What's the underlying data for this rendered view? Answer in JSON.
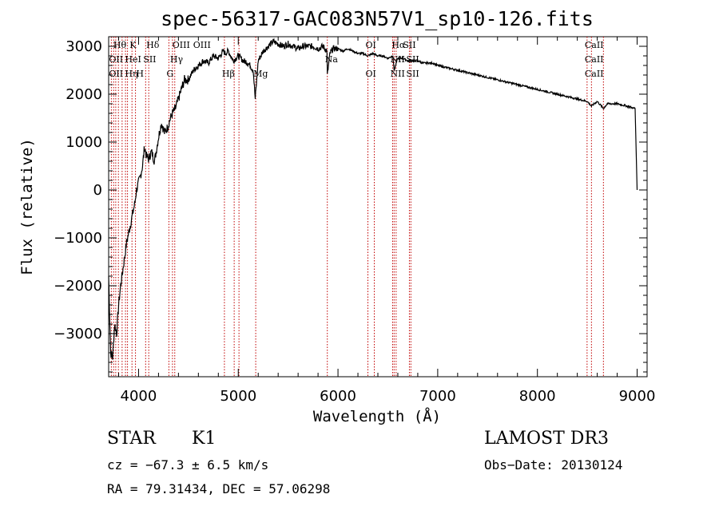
{
  "chart_data": {
    "type": "line",
    "title": "spec-56317-GAC083N57V1_sp10-126.fits",
    "xlabel": "Wavelength (Å)",
    "ylabel": "Flux (relative)",
    "xlim": [
      3700,
      9100
    ],
    "ylim": [
      -3900,
      3200
    ],
    "xticks": [
      4000,
      5000,
      6000,
      7000,
      8000,
      9000
    ],
    "yticks": [
      -3000,
      -2000,
      -1000,
      0,
      1000,
      2000,
      3000
    ],
    "ytick_labels": [
      "−3000",
      "−2000",
      "−1000",
      "0",
      "1000",
      "2000",
      "3000"
    ],
    "series": [
      {
        "name": "spectrum",
        "x": [
          3700,
          3720,
          3740,
          3760,
          3780,
          3800,
          3820,
          3840,
          3860,
          3880,
          3900,
          3920,
          3940,
          3960,
          3980,
          4000,
          4020,
          4040,
          4060,
          4080,
          4100,
          4130,
          4160,
          4200,
          4230,
          4260,
          4290,
          4320,
          4340,
          4370,
          4400,
          4430,
          4460,
          4500,
          4550,
          4600,
          4650,
          4700,
          4750,
          4800,
          4850,
          4870,
          4900,
          4950,
          5000,
          5050,
          5100,
          5150,
          5170,
          5200,
          5250,
          5300,
          5350,
          5400,
          5450,
          5500,
          5550,
          5600,
          5650,
          5700,
          5750,
          5800,
          5850,
          5890,
          5893,
          5920,
          5950,
          6000,
          6050,
          6100,
          6150,
          6200,
          6250,
          6300,
          6350,
          6400,
          6450,
          6500,
          6550,
          6563,
          6600,
          6650,
          6700,
          6750,
          6800,
          6850,
          6900,
          6950,
          7000,
          7100,
          7200,
          7300,
          7400,
          7500,
          7600,
          7700,
          7800,
          7900,
          8000,
          8100,
          8200,
          8300,
          8400,
          8498,
          8542,
          8600,
          8662,
          8700,
          8800,
          8900,
          8980,
          9000
        ],
        "y": [
          -1800,
          -3400,
          -3500,
          -2800,
          -3000,
          -2400,
          -2000,
          -1700,
          -1400,
          -1100,
          -900,
          -700,
          -500,
          -300,
          0,
          150,
          300,
          500,
          900,
          700,
          650,
          800,
          600,
          1100,
          1400,
          1200,
          1300,
          1500,
          1600,
          1700,
          1900,
          2100,
          2300,
          2300,
          2500,
          2600,
          2700,
          2650,
          2800,
          2750,
          2900,
          2850,
          2900,
          2700,
          2800,
          2700,
          2650,
          2500,
          1900,
          2700,
          2900,
          3000,
          3100,
          3050,
          3000,
          3050,
          3000,
          2950,
          3000,
          3000,
          3000,
          2950,
          3000,
          2900,
          2400,
          2850,
          2950,
          2950,
          2900,
          2950,
          2900,
          2850,
          2850,
          2800,
          2850,
          2800,
          2800,
          2750,
          2800,
          2500,
          2750,
          2750,
          2700,
          2700,
          2700,
          2650,
          2650,
          2650,
          2600,
          2550,
          2500,
          2450,
          2400,
          2350,
          2300,
          2250,
          2200,
          2150,
          2100,
          2050,
          2000,
          1950,
          1900,
          1850,
          1750,
          1850,
          1700,
          1800,
          1800,
          1750,
          1700,
          0
        ]
      }
    ],
    "lines": [
      {
        "x": 3727,
        "label": "OII"
      },
      {
        "x": 3750,
        "label": "OII"
      },
      {
        "x": 3771,
        "label": "Hθ"
      },
      {
        "x": 3798,
        "label": "Hη"
      },
      {
        "x": 3835,
        "label": "Hη"
      },
      {
        "x": 3869,
        "label": "HeI"
      },
      {
        "x": 3889,
        "label": "Hζ"
      },
      {
        "x": 3934,
        "label": "K"
      },
      {
        "x": 3969,
        "label": "H"
      },
      {
        "x": 4071,
        "label": "SII"
      },
      {
        "x": 4102,
        "label": "Hδ"
      },
      {
        "x": 4304,
        "label": "G"
      },
      {
        "x": 4340,
        "label": "Hγ"
      },
      {
        "x": 4363,
        "label": "OIII"
      },
      {
        "x": 4861,
        "label": "Hβ"
      },
      {
        "x": 4959,
        "label": "OIII"
      },
      {
        "x": 5007,
        "label": "OIII"
      },
      {
        "x": 5175,
        "label": "Mg"
      },
      {
        "x": 5893,
        "label": "Na"
      },
      {
        "x": 6300,
        "label": "OI"
      },
      {
        "x": 6364,
        "label": "OI"
      },
      {
        "x": 6548,
        "label": "NII"
      },
      {
        "x": 6563,
        "label": "Hα"
      },
      {
        "x": 6583,
        "label": "NII"
      },
      {
        "x": 6716,
        "label": "SII"
      },
      {
        "x": 6731,
        "label": "SII"
      },
      {
        "x": 8498,
        "label": "CaII"
      },
      {
        "x": 8542,
        "label": "CaII"
      },
      {
        "x": 8662,
        "label": "CaII"
      }
    ],
    "line_label_rows": [
      [
        "Hθ",
        "K",
        "Hδ",
        "OIII",
        "OIII",
        "OI",
        "Hα",
        "SII",
        "CaII"
      ],
      [
        "OII",
        "HeI",
        "SII",
        "Hγ",
        "Na",
        "NII",
        "SII",
        "CaII"
      ],
      [
        "OII",
        "Hη",
        "H",
        "G",
        "Hβ",
        "Mg",
        "OI",
        "NII",
        "SII",
        "CaII"
      ]
    ],
    "line_color": "#c00000",
    "spectrum_color": "#000000"
  },
  "info": {
    "object_class": "STAR",
    "subclass": "K1",
    "survey": "LAMOST DR3",
    "cz": "cz = −67.3 ± 6.5 km/s",
    "obs_date": "Obs−Date: 20130124",
    "coords": "RA =  79.31434, DEC =  57.06298"
  }
}
